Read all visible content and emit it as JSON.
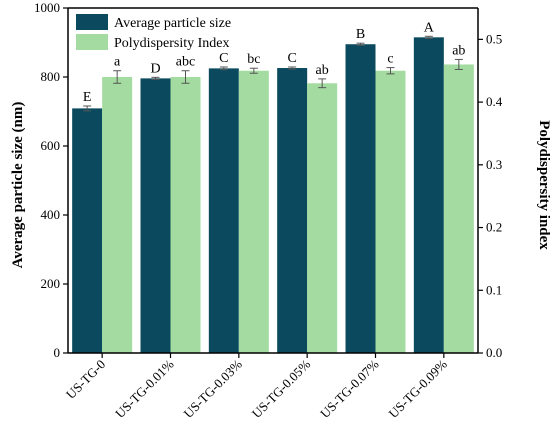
{
  "chart_data": {
    "type": "bar",
    "categories": [
      "US-TG-0",
      "US-TG-0.01%",
      "US-TG-0.03%",
      "US-TG-0.05%",
      "US-TG-0.07%",
      "US-TG-0.09%"
    ],
    "series": [
      {
        "name": "Average particle size",
        "axis": "left",
        "color": "#0b4a5e",
        "values": [
          709,
          796,
          825,
          826,
          895,
          915
        ],
        "errors": [
          7,
          3,
          4,
          3,
          3,
          3
        ],
        "letters": [
          "E",
          "D",
          "C",
          "C",
          "B",
          "A"
        ]
      },
      {
        "name": "Polydispersity Index",
        "axis": "right",
        "color": "#a3dba0",
        "values": [
          0.44,
          0.44,
          0.45,
          0.43,
          0.45,
          0.46
        ],
        "errors": [
          0.01,
          0.01,
          0.004,
          0.007,
          0.005,
          0.008
        ],
        "letters": [
          "a",
          "abc",
          "bc",
          "ab",
          "c",
          "ab"
        ]
      }
    ],
    "ylabel": "Average particle size (nm)",
    "ylabel_right": "Polydispersity index",
    "ylim": [
      0,
      1000
    ],
    "ylim_right": [
      0,
      0.55
    ],
    "yticks": [
      "0",
      "200",
      "400",
      "600",
      "800",
      "1000"
    ],
    "yticks_right": [
      "0.0",
      "0.1",
      "0.2",
      "0.3",
      "0.4",
      "0.5"
    ],
    "legend_position": "top-left",
    "grid": false
  }
}
